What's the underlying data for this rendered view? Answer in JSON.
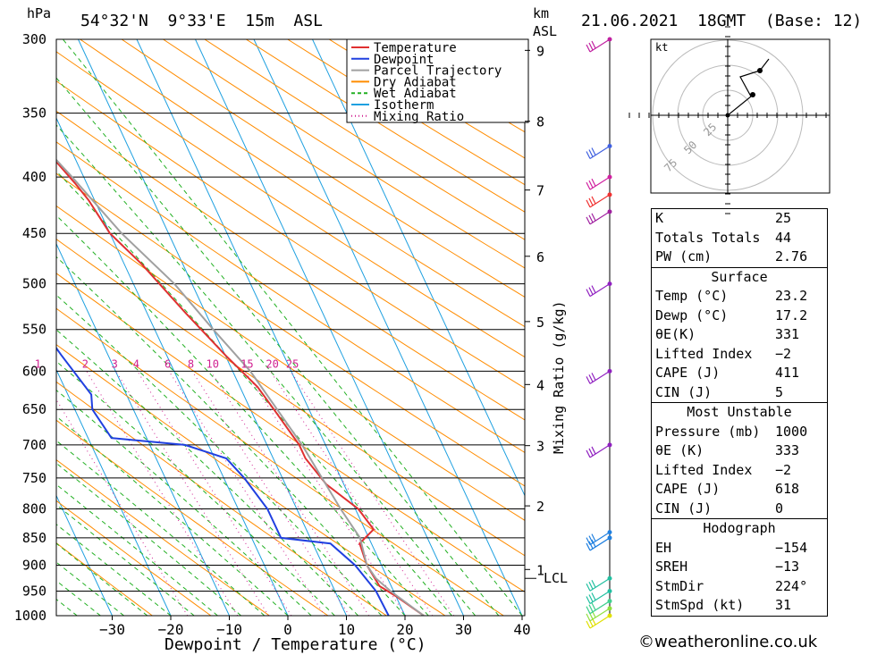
{
  "header": {
    "pressure_unit": "hPa",
    "location": "54°32'N  9°33'E  15m  ASL",
    "height_unit_line1": "km",
    "height_unit_line2": "ASL",
    "datetime": "21.06.2021  18GMT  (Base: 12)"
  },
  "chart_data": {
    "type": "line",
    "title": "54°32'N  9°33'E  15m  ASL",
    "xlabel": "Dewpoint / Temperature (°C)",
    "ylabel": "hPa",
    "secondary_ylabel": "Mixing Ratio (g/kg)",
    "pressure_levels": [
      300,
      350,
      400,
      450,
      500,
      550,
      600,
      650,
      700,
      750,
      800,
      850,
      900,
      950,
      1000
    ],
    "x_ticks": [
      -30,
      -20,
      -10,
      0,
      10,
      20,
      30,
      40
    ],
    "xlim": [
      -40,
      40
    ],
    "ylim": [
      1000,
      300
    ],
    "km_ticks": [
      {
        "km": "1",
        "p": 908
      },
      {
        "km": "2",
        "p": 795
      },
      {
        "km": "3",
        "p": 701
      },
      {
        "km": "4",
        "p": 617
      },
      {
        "km": "5",
        "p": 541
      },
      {
        "km": "6",
        "p": 472
      },
      {
        "km": "7",
        "p": 411
      },
      {
        "km": "8",
        "p": 356
      },
      {
        "km": "9",
        "p": 307
      }
    ],
    "lcl": {
      "label": "LCL",
      "p": 925
    },
    "mixing_ratio_labels": [
      "1",
      "2",
      "3",
      "4",
      "6",
      "8",
      "10",
      "15",
      "20",
      "25"
    ],
    "legend_position": "top-right",
    "legend": [
      {
        "name": "Temperature",
        "color": "#e03030",
        "style": "solid"
      },
      {
        "name": "Dewpoint",
        "color": "#2040e0",
        "style": "solid"
      },
      {
        "name": "Parcel Trajectory",
        "color": "#a0a0a0",
        "style": "solid"
      },
      {
        "name": "Dry Adiabat",
        "color": "#ff8c00",
        "style": "solid"
      },
      {
        "name": "Wet Adiabat",
        "color": "#22b022",
        "style": "dashed"
      },
      {
        "name": "Isotherm",
        "color": "#1ea0e0",
        "style": "solid"
      },
      {
        "name": "Mixing Ratio",
        "color": "#d02090",
        "style": "dotted"
      }
    ],
    "series": [
      {
        "name": "Temperature",
        "color": "#e03030",
        "points": [
          [
            23.2,
            1000
          ],
          [
            20,
            960
          ],
          [
            18,
            940
          ],
          [
            17.5,
            900
          ],
          [
            18,
            860
          ],
          [
            21.5,
            835
          ],
          [
            20.5,
            800
          ],
          [
            17,
            760
          ],
          [
            15.5,
            720
          ],
          [
            15.5,
            700
          ],
          [
            14,
            650
          ],
          [
            13,
            620
          ],
          [
            10,
            580
          ],
          [
            6.5,
            530
          ],
          [
            3,
            480
          ],
          [
            0,
            450
          ],
          [
            -1,
            420
          ],
          [
            -2,
            405
          ],
          [
            -5,
            370
          ],
          [
            -9,
            330
          ],
          [
            -12,
            300
          ]
        ]
      },
      {
        "name": "Dewpoint",
        "color": "#2040e0",
        "points": [
          [
            17.2,
            1000
          ],
          [
            17,
            950
          ],
          [
            15.5,
            900
          ],
          [
            13,
            860
          ],
          [
            5,
            850
          ],
          [
            5,
            800
          ],
          [
            3.5,
            750
          ],
          [
            2,
            720
          ],
          [
            -4,
            700
          ],
          [
            -16,
            690
          ],
          [
            -17,
            650
          ],
          [
            -16,
            630
          ],
          [
            -18,
            580
          ],
          [
            -21,
            500
          ],
          [
            -26,
            470
          ],
          [
            -30,
            450
          ],
          [
            -32,
            400
          ],
          [
            -28,
            350
          ],
          [
            -23,
            310
          ],
          [
            -20,
            300
          ]
        ]
      },
      {
        "name": "Parcel Trajectory",
        "color": "#a0a0a0",
        "points": [
          [
            23.2,
            1000
          ],
          [
            19.5,
            950
          ],
          [
            18,
            925
          ],
          [
            17.5,
            900
          ],
          [
            18.5,
            850
          ],
          [
            17.5,
            800
          ],
          [
            16,
            700
          ],
          [
            13,
            600
          ],
          [
            10,
            550
          ],
          [
            7,
            500
          ],
          [
            2,
            450
          ],
          [
            -2,
            400
          ],
          [
            -7,
            350
          ],
          [
            -12,
            310
          ],
          [
            -13,
            300
          ]
        ]
      }
    ],
    "wind_barbs": [
      {
        "p": 1000,
        "color": "#e0e000"
      },
      {
        "p": 985,
        "color": "#90e040"
      },
      {
        "p": 970,
        "color": "#40d090"
      },
      {
        "p": 950,
        "color": "#20c0a0"
      },
      {
        "p": 925,
        "color": "#20c0a0"
      },
      {
        "p": 850,
        "color": "#2080e0"
      },
      {
        "p": 840,
        "color": "#2080e0"
      },
      {
        "p": 700,
        "color": "#9020c0"
      },
      {
        "p": 600,
        "color": "#9020c0"
      },
      {
        "p": 500,
        "color": "#9020c0"
      },
      {
        "p": 430,
        "color": "#a020a0"
      },
      {
        "p": 415,
        "color": "#f03030"
      },
      {
        "p": 400,
        "color": "#d020a0"
      },
      {
        "p": 375,
        "color": "#4060e0"
      },
      {
        "p": 300,
        "color": "#c020a0"
      }
    ]
  },
  "hodograph": {
    "unit": "kt",
    "rings": [
      "25",
      "50",
      "75"
    ]
  },
  "indices": {
    "rows": [
      {
        "label": "K",
        "value": "25"
      },
      {
        "label": "Totals Totals",
        "value": "44"
      },
      {
        "label": "PW (cm)",
        "value": "2.76"
      }
    ]
  },
  "surface": {
    "title": "Surface",
    "rows": [
      {
        "label": "Temp (°C)",
        "value": "23.2"
      },
      {
        "label": "Dewp (°C)",
        "value": "17.2"
      },
      {
        "label": "θE(K)",
        "value": "331"
      },
      {
        "label": "Lifted Index",
        "value": "-2"
      },
      {
        "label": "CAPE (J)",
        "value": "411"
      },
      {
        "label": "CIN (J)",
        "value": "5"
      }
    ]
  },
  "most_unstable": {
    "title": "Most Unstable",
    "rows": [
      {
        "label": "Pressure (mb)",
        "value": "1000"
      },
      {
        "label": "θE (K)",
        "value": "333"
      },
      {
        "label": "Lifted Index",
        "value": "-2"
      },
      {
        "label": "CAPE (J)",
        "value": "618"
      },
      {
        "label": "CIN (J)",
        "value": "0"
      }
    ]
  },
  "hodograph_stats": {
    "title": "Hodograph",
    "rows": [
      {
        "label": "EH",
        "value": "-154"
      },
      {
        "label": "SREH",
        "value": "-13"
      },
      {
        "label": "StmDir",
        "value": "224°"
      },
      {
        "label": "StmSpd (kt)",
        "value": "31"
      }
    ]
  },
  "credit": "©weatheronline.co.uk"
}
